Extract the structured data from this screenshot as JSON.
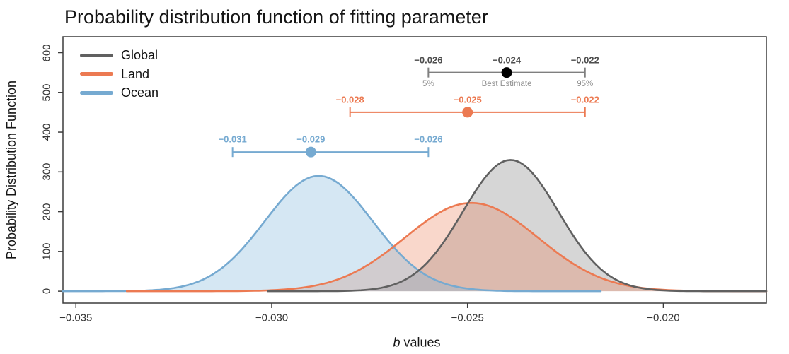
{
  "page": {
    "title": "Probability distribution function of fitting parameter"
  },
  "chart_data": {
    "type": "line",
    "title": "Probability distribution function of fitting parameter",
    "xlabel_italic": "b",
    "xlabel_rest": " values",
    "ylabel": "Probability Distribution Function",
    "xlim": [
      -0.03533,
      -0.01737
    ],
    "ylim": [
      -30,
      640
    ],
    "grid": false,
    "x_ticks": [
      {
        "value": -0.035,
        "label": "−0.035"
      },
      {
        "value": -0.03,
        "label": "−0.030"
      },
      {
        "value": -0.025,
        "label": "−0.025"
      },
      {
        "value": -0.02,
        "label": "−0.020"
      }
    ],
    "y_ticks": [
      {
        "value": 0,
        "label": "0"
      },
      {
        "value": 100,
        "label": "100"
      },
      {
        "value": 200,
        "label": "200"
      },
      {
        "value": 300,
        "label": "300"
      },
      {
        "value": 400,
        "label": "400"
      },
      {
        "value": 500,
        "label": "500"
      },
      {
        "value": 600,
        "label": "600"
      }
    ],
    "legend": {
      "position": "top-left",
      "items": [
        {
          "label": "Global",
          "color": "#606060"
        },
        {
          "label": "Land",
          "color": "#EC7A52"
        },
        {
          "label": "Ocean",
          "color": "#76AAD1"
        }
      ]
    },
    "series": [
      {
        "name": "Global",
        "shape": "gaussian",
        "mean": -0.0239,
        "sigma": 0.00122,
        "peak": 330,
        "x_range": [
          -0.0301,
          -0.01737
        ],
        "line_color": "#606060",
        "fill_color": "rgba(128,128,128,0.32)"
      },
      {
        "name": "Land",
        "shape": "gaussian",
        "mean": -0.0249,
        "sigma": 0.0017,
        "peak": 222,
        "x_range": [
          -0.0337,
          -0.01737
        ],
        "line_color": "#EC7A52",
        "fill_color": "rgba(236,122,82,0.30)"
      },
      {
        "name": "Ocean",
        "shape": "gaussian",
        "mean": -0.0288,
        "sigma": 0.00138,
        "peak": 290,
        "x_range": [
          -0.03533,
          -0.0216
        ],
        "line_color": "#76AAD1",
        "fill_color": "rgba(125,180,218,0.32)"
      }
    ],
    "error_bars": [
      {
        "series": "Global",
        "y": 550,
        "points": [
          {
            "value": -0.026,
            "label": "−0.026",
            "sublabel": "5%"
          },
          {
            "value": -0.024,
            "label": "−0.024",
            "sublabel": "Best Estimate"
          },
          {
            "value": -0.022,
            "label": "−0.022",
            "sublabel": "95%"
          }
        ],
        "line_color": "#7f7f7f",
        "dot_color": "#000000",
        "label_color": "#4d4d4d",
        "sublabel_color": "#8f8f8f"
      },
      {
        "series": "Land",
        "y": 450,
        "points": [
          {
            "value": -0.028,
            "label": "−0.028",
            "sublabel": ""
          },
          {
            "value": -0.025,
            "label": "−0.025",
            "sublabel": ""
          },
          {
            "value": -0.022,
            "label": "−0.022",
            "sublabel": ""
          }
        ],
        "line_color": "#EC7A52",
        "dot_color": "#EC7A52",
        "label_color": "#EC7A52",
        "sublabel_color": "#EC7A52"
      },
      {
        "series": "Ocean",
        "y": 350,
        "points": [
          {
            "value": -0.031,
            "label": "−0.031",
            "sublabel": ""
          },
          {
            "value": -0.029,
            "label": "−0.029",
            "sublabel": ""
          },
          {
            "value": -0.026,
            "label": "−0.026",
            "sublabel": ""
          }
        ],
        "line_color": "#76AAD1",
        "dot_color": "#76AAD1",
        "label_color": "#76AAD1",
        "sublabel_color": "#76AAD1"
      }
    ]
  }
}
